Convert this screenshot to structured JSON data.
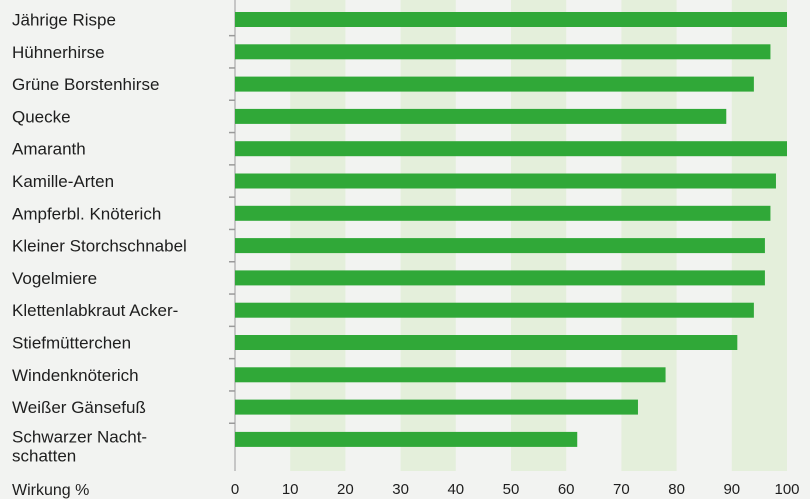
{
  "chart_data": {
    "type": "bar",
    "orientation": "horizontal",
    "categories": [
      "Jährige Rispe",
      "Hühnerhirse",
      " Grüne Borstenhirse",
      "Quecke",
      "Amaranth",
      "Kamille-Arten",
      "Ampferbl. Knöterich",
      "Kleiner Storchschnabel",
      "Vogelmiere",
      "Klettenlabkraut Acker-",
      "Stiefmütterchen",
      "Windenknöterich",
      "Weißer Gänsefuß",
      "Schwarzer Nacht-\nschatten"
    ],
    "values": [
      100,
      97,
      94,
      89,
      100,
      98,
      97,
      96,
      96,
      94,
      91,
      78,
      73,
      62
    ],
    "xlabel": "Wirkung %",
    "xlim": [
      0,
      100
    ],
    "xticks": [
      0,
      10,
      20,
      30,
      40,
      50,
      60,
      70,
      80,
      90,
      100
    ],
    "bar_color": "#30a838",
    "band_color": "#e4efdb",
    "background_color": "#f2f3f1",
    "alternating_bands": true
  }
}
